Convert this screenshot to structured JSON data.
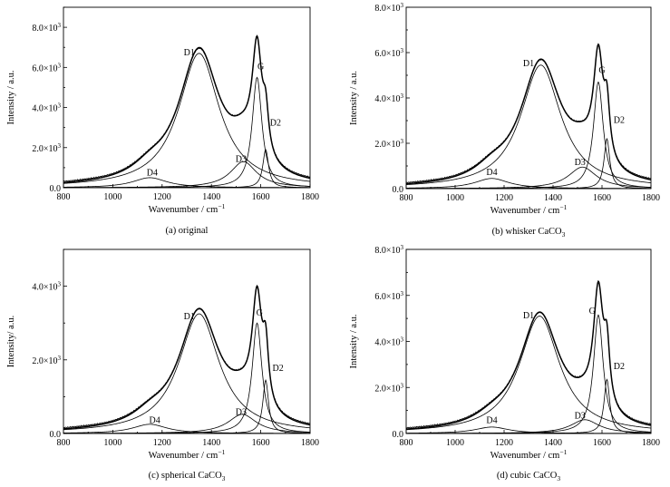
{
  "chart_data": [
    {
      "type": "line",
      "caption": "(a) original",
      "xlabel": "Wavenumber / cm",
      "xlabel_sup": "−1",
      "ylabel": "Intensity / a.u.",
      "xlim": [
        800,
        1800
      ],
      "ylim": [
        0,
        9000
      ],
      "xticks": [
        800,
        1000,
        1200,
        1400,
        1600,
        1800
      ],
      "xtick_labels": [
        "800",
        "1000",
        "1200",
        "1400",
        "1600",
        "1800"
      ],
      "yticks": [
        0,
        2000,
        4000,
        6000,
        8000
      ],
      "ytick_labels": [
        {
          "base": "0.0",
          "sup": ""
        },
        {
          "base": "2.0×10",
          "sup": "3"
        },
        {
          "base": "4.0×10",
          "sup": "3"
        },
        {
          "base": "6.0×10",
          "sup": "3"
        },
        {
          "base": "8.0×10",
          "sup": "3"
        }
      ],
      "peaks": [
        {
          "label": "D1",
          "center": 1350,
          "height": 6700,
          "width": 200,
          "label_x": 1310,
          "label_y": 6600
        },
        {
          "label": "G",
          "center": 1585,
          "height": 5500,
          "width": 48,
          "label_x": 1600,
          "label_y": 5900
        },
        {
          "label": "D2",
          "center": 1620,
          "height": 1900,
          "width": 28,
          "label_x": 1660,
          "label_y": 3100
        },
        {
          "label": "D3",
          "center": 1530,
          "height": 1300,
          "width": 130,
          "label_x": 1520,
          "label_y": 1300
        },
        {
          "label": "D4",
          "center": 1150,
          "height": 500,
          "width": 170,
          "label_x": 1160,
          "label_y": 600
        }
      ]
    },
    {
      "type": "line",
      "caption": "(b) whisker CaCO",
      "caption_sub": "3",
      "xlabel": "Wavenumber / cm",
      "xlabel_sup": "−1",
      "ylabel": "Intensity / a.u.",
      "xlim": [
        800,
        1800
      ],
      "ylim": [
        0,
        8000
      ],
      "xticks": [
        800,
        1000,
        1200,
        1400,
        1600,
        1800
      ],
      "xtick_labels": [
        "800",
        "1000",
        "1200",
        "1400",
        "1600",
        "1800"
      ],
      "yticks": [
        0,
        2000,
        4000,
        6000,
        8000
      ],
      "ytick_labels": [
        {
          "base": "0.0",
          "sup": ""
        },
        {
          "base": "2.0×10",
          "sup": "3"
        },
        {
          "base": "4.0×10",
          "sup": "3"
        },
        {
          "base": "6.0×10",
          "sup": "3"
        },
        {
          "base": "8.0×10",
          "sup": "3"
        }
      ],
      "peaks": [
        {
          "label": "D1",
          "center": 1350,
          "height": 5450,
          "width": 200,
          "label_x": 1300,
          "label_y": 5400
        },
        {
          "label": "G",
          "center": 1585,
          "height": 4700,
          "width": 48,
          "label_x": 1600,
          "label_y": 5100
        },
        {
          "label": "D2",
          "center": 1620,
          "height": 2200,
          "width": 28,
          "label_x": 1670,
          "label_y": 2900
        },
        {
          "label": "D3",
          "center": 1520,
          "height": 950,
          "width": 140,
          "label_x": 1510,
          "label_y": 1050
        },
        {
          "label": "D4",
          "center": 1150,
          "height": 450,
          "width": 170,
          "label_x": 1150,
          "label_y": 600
        }
      ]
    },
    {
      "type": "line",
      "caption": "(c) spherical CaCO",
      "caption_sub": "3",
      "xlabel": "Wavenumber / cm",
      "xlabel_sup": "−1",
      "ylabel": "Intensity/ a.u.",
      "xlim": [
        800,
        1800
      ],
      "ylim": [
        0,
        5000
      ],
      "xticks": [
        800,
        1000,
        1200,
        1400,
        1600,
        1800
      ],
      "xtick_labels": [
        "800",
        "1000",
        "1200",
        "1400",
        "1600",
        "1800"
      ],
      "yticks": [
        0,
        2000,
        4000
      ],
      "ytick_labels": [
        {
          "base": "0.0",
          "sup": ""
        },
        {
          "base": "2.0×10",
          "sup": "3"
        },
        {
          "base": "4.0×10",
          "sup": "3"
        }
      ],
      "peaks": [
        {
          "label": "D1",
          "center": 1350,
          "height": 3250,
          "width": 200,
          "label_x": 1310,
          "label_y": 3100
        },
        {
          "label": "G",
          "center": 1585,
          "height": 3000,
          "width": 48,
          "label_x": 1595,
          "label_y": 3200
        },
        {
          "label": "D2",
          "center": 1620,
          "height": 1450,
          "width": 28,
          "label_x": 1670,
          "label_y": 1700
        },
        {
          "label": "D3",
          "center": 1525,
          "height": 520,
          "width": 140,
          "label_x": 1520,
          "label_y": 500
        },
        {
          "label": "D4",
          "center": 1150,
          "height": 250,
          "width": 170,
          "label_x": 1170,
          "label_y": 280
        }
      ]
    },
    {
      "type": "line",
      "caption": "(d) cubic CaCO",
      "caption_sub": "3",
      "xlabel": "Wavenumber / cm",
      "xlabel_sup": "−1",
      "ylabel": "Intensity / a.u.",
      "xlim": [
        800,
        1800
      ],
      "ylim": [
        0,
        8000
      ],
      "xticks": [
        800,
        1000,
        1200,
        1400,
        1600,
        1800
      ],
      "xtick_labels": [
        "800",
        "1000",
        "1200",
        "1400",
        "1600",
        "1800"
      ],
      "yticks": [
        0,
        2000,
        4000,
        6000,
        8000
      ],
      "ytick_labels": [
        {
          "base": "0.0",
          "sup": ""
        },
        {
          "base": "2.0×10",
          "sup": "3"
        },
        {
          "base": "4.0×10",
          "sup": "3"
        },
        {
          "base": "6.0×10",
          "sup": "3"
        },
        {
          "base": "8.0×10",
          "sup": "3"
        }
      ],
      "peaks": [
        {
          "label": "D1",
          "center": 1345,
          "height": 5100,
          "width": 200,
          "label_x": 1300,
          "label_y": 5000
        },
        {
          "label": "G",
          "center": 1585,
          "height": 5150,
          "width": 48,
          "label_x": 1560,
          "label_y": 5200
        },
        {
          "label": "D2",
          "center": 1620,
          "height": 2350,
          "width": 28,
          "label_x": 1670,
          "label_y": 2800
        },
        {
          "label": "D3",
          "center": 1530,
          "height": 600,
          "width": 140,
          "label_x": 1510,
          "label_y": 650
        },
        {
          "label": "D4",
          "center": 1150,
          "height": 280,
          "width": 170,
          "label_x": 1150,
          "label_y": 450
        }
      ]
    }
  ]
}
